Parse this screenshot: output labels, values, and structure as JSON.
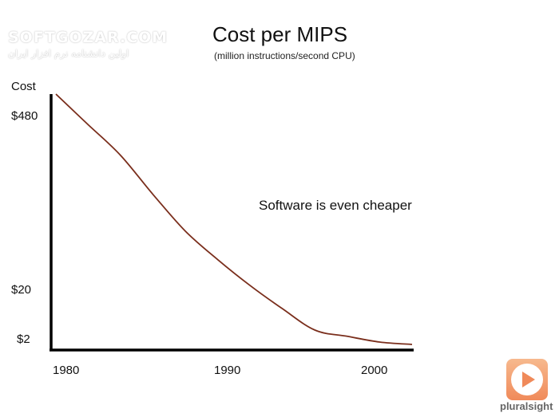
{
  "watermark": {
    "latin": "SOFTGOZAR.COM",
    "farsi": "اولین دانشنامه نرم افزار ایران"
  },
  "logo": {
    "text": "pluralsight",
    "icon": "play-icon",
    "colors": {
      "tile": "#f08a5a",
      "text": "#666666"
    }
  },
  "chart_data": {
    "type": "line",
    "title": "Cost per MIPS",
    "subtitle": "(million instructions/second CPU)",
    "ylabel": "Cost",
    "xlabel": "",
    "x_ticks": [
      "1980",
      "1990",
      "2000"
    ],
    "y_ticks": [
      "$480",
      "$20",
      "$2"
    ],
    "annotation": "Software is even cheaper",
    "grid": false,
    "legend": "none",
    "colors": {
      "curve": "#7a2e1c",
      "axes": "#000000"
    },
    "series": [
      {
        "x": [
          1980,
          1982,
          1984,
          1986,
          1988,
          1990,
          1992,
          1994,
          1996,
          1998,
          2000,
          2002
        ],
        "y": [
          500,
          300,
          180,
          95,
          52,
          30,
          18,
          11,
          7,
          4.5,
          3,
          2
        ]
      }
    ]
  }
}
